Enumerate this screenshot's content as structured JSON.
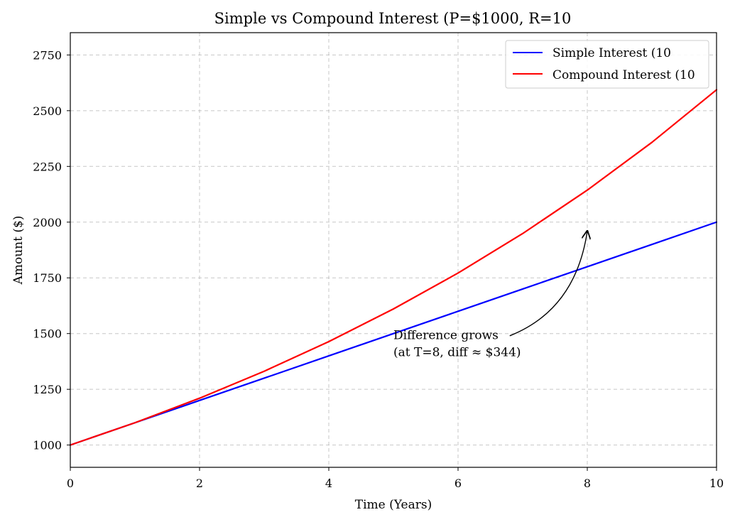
{
  "chart_data": {
    "type": "line",
    "title": "Simple vs Compound Interest (P=$1000, R=10",
    "xlabel": "Time (Years)",
    "ylabel": "Amount ($)",
    "xlim": [
      0,
      10
    ],
    "ylim": [
      900,
      2850
    ],
    "xticks": [
      0,
      2,
      4,
      6,
      8,
      10
    ],
    "yticks": [
      1000,
      1250,
      1500,
      1750,
      2000,
      2250,
      2500,
      2750
    ],
    "grid": true,
    "legend_position": "top-right",
    "x": [
      0,
      1,
      2,
      3,
      4,
      5,
      6,
      7,
      8,
      9,
      10
    ],
    "series": [
      {
        "name": "Simple Interest (10",
        "color": "#0000ff",
        "values": [
          1000,
          1100,
          1200,
          1300,
          1400,
          1500,
          1600,
          1700,
          1800,
          1900,
          2000
        ]
      },
      {
        "name": "Compound Interest (10",
        "color": "#ff0000",
        "values": [
          1000,
          1100,
          1210,
          1331,
          1464.1,
          1610.51,
          1771.56,
          1948.72,
          2143.59,
          2357.95,
          2593.74
        ]
      }
    ],
    "annotation": {
      "lines": [
        "Difference grows",
        "(at T=8, diff ≈ $344)"
      ],
      "text_at": [
        5.0,
        1393
      ],
      "arrow_from": [
        6.8,
        1490
      ],
      "arrow_to": [
        8.0,
        1960
      ]
    }
  }
}
